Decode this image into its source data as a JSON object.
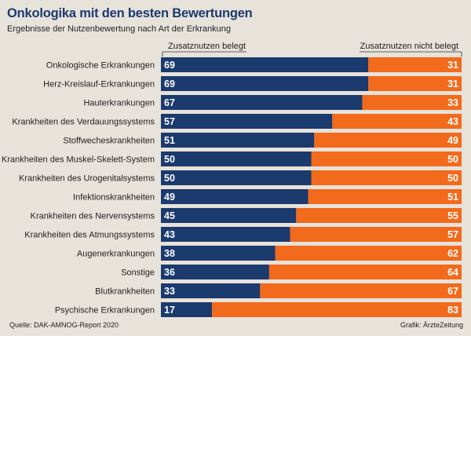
{
  "title": "Onkologika mit den besten Bewertungen",
  "subtitle": "Ergebnisse der Nutzenbewertung nach Art der Erkrankung",
  "source": "Quelle: DAK-AMNOG-Report 2020",
  "credit": "Grafik: ÄrzteZeitung",
  "colors": {
    "belegt": "#1b3a6e",
    "nicht_belegt": "#f26a1b",
    "background": "#e7e2da"
  },
  "chart_data": {
    "type": "bar",
    "orientation": "horizontal",
    "stacked": true,
    "xlim": [
      0,
      100
    ],
    "categories": [
      "Onkologische Erkrankungen",
      "Herz-Kreislauf-Erkrankungen",
      "Hauterkrankungen",
      "Krankheiten des Verdauungssystems",
      "Stoffwecheskrankheiten",
      "Krankheiten des Muskel-Skelett-System",
      "Krankheiten des Urogenitalsystems",
      "Infektionskrankheiten",
      "Krankheiten des Nervensystems",
      "Krankheiten des Atmungssystems",
      "Augenerkrankungen",
      "Sonstige",
      "Blutkrankheiten",
      "Psychische Erkrankungen"
    ],
    "series": [
      {
        "name": "Zusatznutzen belegt",
        "values": [
          69,
          69,
          67,
          57,
          51,
          50,
          50,
          49,
          45,
          43,
          38,
          36,
          33,
          17
        ]
      },
      {
        "name": "Zusatznutzen nicht belegt",
        "values": [
          31,
          31,
          33,
          43,
          49,
          50,
          50,
          51,
          55,
          57,
          62,
          64,
          67,
          83
        ]
      }
    ]
  }
}
